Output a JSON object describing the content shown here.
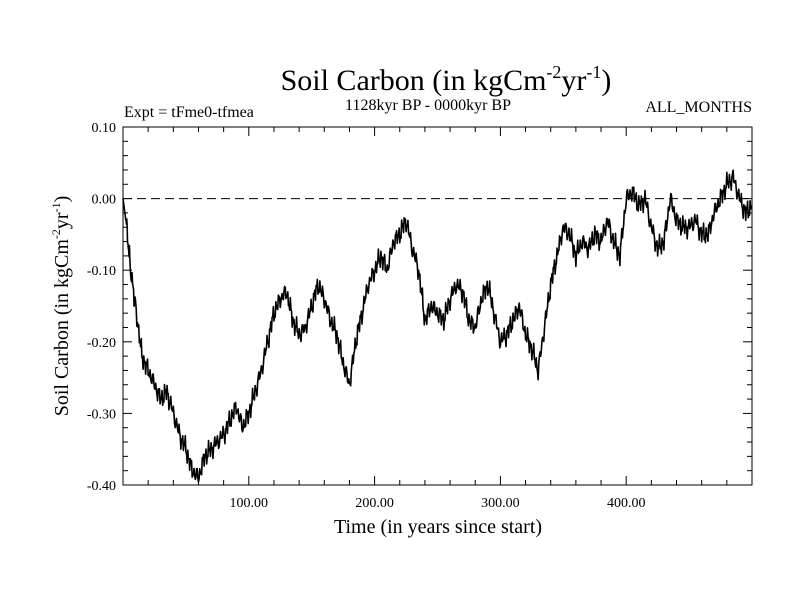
{
  "chart_data": {
    "type": "line",
    "title": {
      "base": "Soil Carbon (in kgCm",
      "sup1": "-2",
      "mid": "yr",
      "sup2": "-1",
      "end": ")"
    },
    "subtitle_left": "Expt = tFme0-tfmea",
    "subtitle_center": "1128kyr BP - 0000kyr BP",
    "subtitle_right": "ALL_MONTHS",
    "xlabel": "Time (in years since start)",
    "ylabel": {
      "base": "Soil Carbon (in kgCm",
      "sup1": "-2",
      "mid": "yr",
      "sup2": "-1",
      "end": ")"
    },
    "xlim": [
      0,
      500
    ],
    "ylim": [
      -0.4,
      0.1
    ],
    "xticks": [
      100,
      200,
      300,
      400
    ],
    "xtick_labels": [
      "100.00",
      "200.00",
      "300.00",
      "400.00"
    ],
    "yticks": [
      0.1,
      0.0,
      -0.1,
      -0.2,
      -0.3,
      -0.4
    ],
    "ytick_labels": [
      "0.10",
      "0.00",
      "-0.10",
      "-0.20",
      "-0.30",
      "-0.40"
    ],
    "reference_line": 0.0,
    "series": [
      {
        "name": "Soil Carbon",
        "x": [
          0,
          3,
          6,
          10,
          15,
          20,
          25,
          30,
          35,
          40,
          45,
          50,
          55,
          60,
          65,
          70,
          75,
          80,
          85,
          90,
          95,
          100,
          105,
          110,
          115,
          120,
          125,
          130,
          135,
          140,
          145,
          150,
          155,
          160,
          165,
          170,
          175,
          180,
          185,
          190,
          195,
          200,
          205,
          210,
          215,
          220,
          225,
          230,
          235,
          240,
          245,
          250,
          255,
          260,
          265,
          270,
          275,
          280,
          285,
          290,
          295,
          300,
          305,
          310,
          315,
          320,
          325,
          330,
          335,
          340,
          345,
          350,
          355,
          360,
          365,
          370,
          375,
          380,
          385,
          390,
          395,
          400,
          405,
          410,
          415,
          420,
          425,
          430,
          435,
          440,
          445,
          450,
          455,
          460,
          465,
          470,
          475,
          480,
          485,
          490,
          495,
          500
        ],
        "y": [
          0.0,
          -0.04,
          -0.1,
          -0.15,
          -0.22,
          -0.24,
          -0.26,
          -0.28,
          -0.27,
          -0.3,
          -0.33,
          -0.35,
          -0.38,
          -0.39,
          -0.36,
          -0.35,
          -0.34,
          -0.33,
          -0.31,
          -0.29,
          -0.32,
          -0.3,
          -0.27,
          -0.24,
          -0.2,
          -0.16,
          -0.14,
          -0.13,
          -0.17,
          -0.19,
          -0.18,
          -0.15,
          -0.12,
          -0.14,
          -0.17,
          -0.19,
          -0.23,
          -0.26,
          -0.2,
          -0.16,
          -0.12,
          -0.1,
          -0.08,
          -0.1,
          -0.06,
          -0.05,
          -0.03,
          -0.07,
          -0.1,
          -0.17,
          -0.15,
          -0.16,
          -0.17,
          -0.14,
          -0.12,
          -0.13,
          -0.17,
          -0.18,
          -0.14,
          -0.12,
          -0.16,
          -0.2,
          -0.19,
          -0.17,
          -0.15,
          -0.19,
          -0.21,
          -0.24,
          -0.18,
          -0.12,
          -0.08,
          -0.04,
          -0.05,
          -0.08,
          -0.06,
          -0.07,
          -0.05,
          -0.06,
          -0.03,
          -0.06,
          -0.08,
          0.0,
          0.01,
          -0.01,
          0.0,
          -0.04,
          -0.07,
          -0.06,
          0.0,
          -0.03,
          -0.04,
          -0.04,
          -0.03,
          -0.05,
          -0.05,
          -0.02,
          0.0,
          0.02,
          0.03,
          0.0,
          -0.02,
          -0.01
        ]
      }
    ]
  }
}
